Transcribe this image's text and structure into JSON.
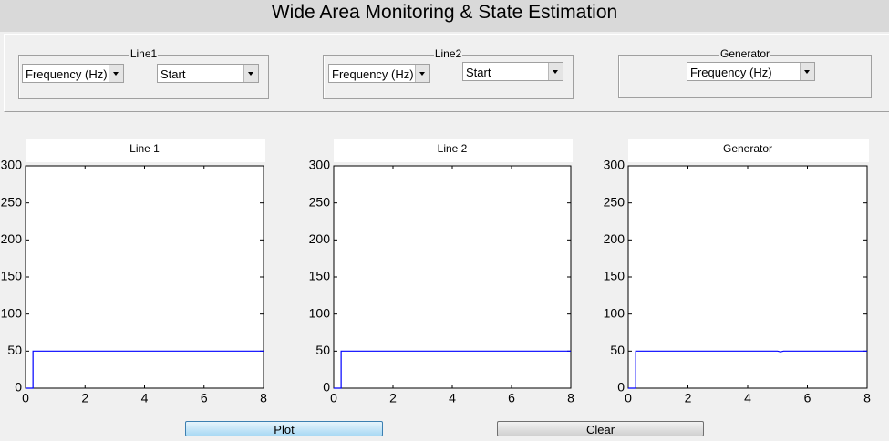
{
  "header": {
    "title": "Wide Area Monitoring & State Estimation"
  },
  "panels": [
    {
      "title": "Line1",
      "dropdowns": [
        "Frequency (Hz)",
        "Start"
      ]
    },
    {
      "title": "Line2",
      "dropdowns": [
        "Frequency (Hz)",
        "Start"
      ]
    },
    {
      "title": "Generator",
      "dropdowns": [
        "Frequency (Hz)"
      ]
    }
  ],
  "chart_data": [
    {
      "type": "line",
      "title": "Line 1",
      "xlim": [
        0,
        8
      ],
      "ylim": [
        0,
        300
      ],
      "xticks": [
        0,
        2,
        4,
        6,
        8
      ],
      "yticks": [
        0,
        50,
        100,
        150,
        200,
        250,
        300
      ],
      "x": [
        0,
        0.25,
        0.25,
        8
      ],
      "series": [
        {
          "color": "#0000ff",
          "values": [
            0,
            0,
            50,
            50
          ]
        }
      ]
    },
    {
      "type": "line",
      "title": "Line 2",
      "xlim": [
        0,
        8
      ],
      "ylim": [
        0,
        300
      ],
      "xticks": [
        0,
        2,
        4,
        6,
        8
      ],
      "yticks": [
        0,
        50,
        100,
        150,
        200,
        250,
        300
      ],
      "x": [
        0,
        0.25,
        0.25,
        8
      ],
      "series": [
        {
          "color": "#0000ff",
          "values": [
            0,
            0,
            50,
            50
          ]
        }
      ]
    },
    {
      "type": "line",
      "title": "Generator",
      "xlim": [
        0,
        8
      ],
      "ylim": [
        0,
        300
      ],
      "xticks": [
        0,
        2,
        4,
        6,
        8
      ],
      "yticks": [
        0,
        50,
        100,
        150,
        200,
        250,
        300
      ],
      "x": [
        0,
        0.25,
        0.25,
        5.0,
        5.1,
        5.2,
        8
      ],
      "series": [
        {
          "color": "#0000ff",
          "values": [
            0,
            0,
            50,
            50,
            49,
            50,
            50
          ]
        }
      ]
    }
  ],
  "buttons": [
    "Plot",
    "Clear"
  ]
}
